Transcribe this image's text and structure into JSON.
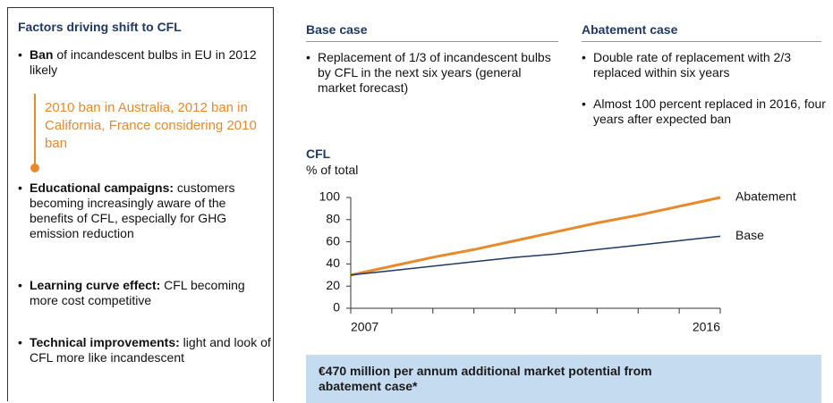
{
  "left_panel": {
    "title": "Factors driving shift to CFL",
    "bullets": [
      {
        "bold": "Ban",
        "text": " of incandescent bulbs in EU in 2012 likely"
      },
      {
        "bold": "Educational campaigns:",
        "text": " customers becoming increasingly aware of the benefits of CFL, especially for GHG emission reduction"
      },
      {
        "bold": "Learning curve effect:",
        "text": " CFL becoming more cost competitive"
      },
      {
        "bold": "Technical improvements:",
        "text": " light and look of CFL more like incandescent"
      }
    ],
    "callout": "2010 ban in Australia, 2012 ban in California, France considering 2010 ban"
  },
  "base_case": {
    "title": "Base case",
    "bullets": [
      "Replacement of 1/3 of incandescent bulbs by CFL in the next six years (general market forecast)"
    ]
  },
  "abatement_case": {
    "title": "Abatement case",
    "bullets": [
      "Double rate of replacement with 2/3 replaced within six years",
      "Almost 100 percent replaced in 2016, four years after expected ban"
    ]
  },
  "chart_data": {
    "type": "line",
    "title": "CFL",
    "subtitle": "% of total",
    "categories": [
      "2007",
      null,
      null,
      null,
      null,
      null,
      null,
      null,
      null,
      "2016"
    ],
    "series": [
      {
        "name": "Abatement",
        "color": "#e8892c",
        "values": [
          30,
          38,
          46,
          53,
          61,
          69,
          77,
          84,
          92,
          100
        ]
      },
      {
        "name": "Base",
        "color": "#1f3864",
        "values": [
          30,
          34,
          38,
          42,
          46,
          49,
          53,
          57,
          61,
          65
        ]
      }
    ],
    "ylim": [
      0,
      100
    ],
    "yticks": [
      0,
      20,
      40,
      60,
      80,
      100
    ]
  },
  "footer": "€470 million per annum additional market potential from abatement case*"
}
